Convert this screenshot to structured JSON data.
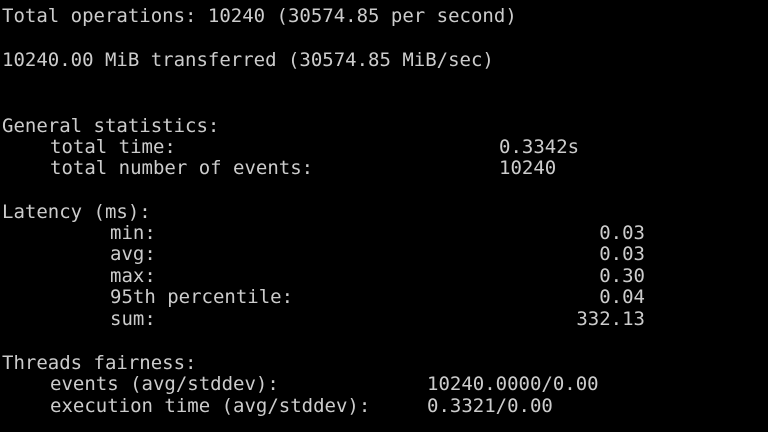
{
  "summary": {
    "total_operations": "Total operations: 10240 (30574.85 per second)",
    "transferred": "10240.00 MiB transferred (30574.85 MiB/sec)"
  },
  "general_statistics": {
    "heading": "General statistics:",
    "total_time_label": "total time:",
    "total_time_value": "0.3342s",
    "total_events_label": "total number of events:",
    "total_events_value": "10240"
  },
  "latency": {
    "heading": "Latency (ms):",
    "rows": [
      {
        "label": "min:",
        "value": "0.03"
      },
      {
        "label": "avg:",
        "value": "0.03"
      },
      {
        "label": "max:",
        "value": "0.30"
      },
      {
        "label": "95th percentile:",
        "value": "0.04"
      },
      {
        "label": "sum:",
        "value": "332.13"
      }
    ]
  },
  "threads_fairness": {
    "heading": "Threads fairness:",
    "events_label": "events (avg/stddev):",
    "events_value": "10240.0000/0.00",
    "exec_label": "execution time (avg/stddev):",
    "exec_value": "0.3321/0.00"
  }
}
